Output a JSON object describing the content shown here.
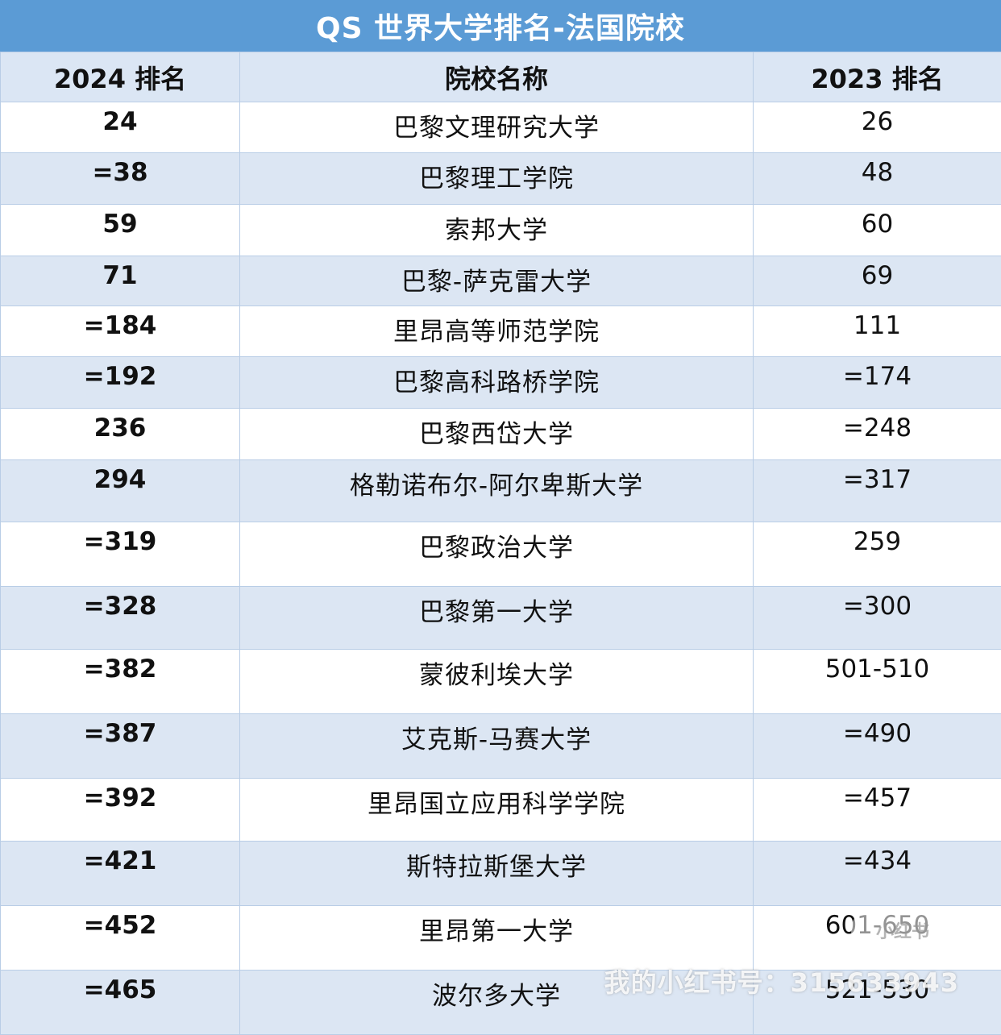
{
  "title": "QS 世界大学排名-法国院校",
  "headers": [
    "2024 排名",
    "院校名称",
    "2023 排名"
  ],
  "rows": [
    {
      "rank2024": "24",
      "school": "巴黎文理研究大学",
      "rank2023": "26"
    },
    {
      "rank2024": "=38",
      "school": "巴黎理工学院",
      "rank2023": "48"
    },
    {
      "rank2024": "59",
      "school": "索邦大学",
      "rank2023": "60"
    },
    {
      "rank2024": "71",
      "school": "巴黎-萨克雷大学",
      "rank2023": "69"
    },
    {
      "rank2024": "=184",
      "school": "里昂高等师范学院",
      "rank2023": "111"
    },
    {
      "rank2024": "=192",
      "school": "巴黎高科路桥学院",
      "rank2023": "=174"
    },
    {
      "rank2024": "236",
      "school": "巴黎西岱大学",
      "rank2023": "=248"
    },
    {
      "rank2024": "294",
      "school": "格勒诺布尔-阿尔卑斯大学",
      "rank2023": "=317"
    },
    {
      "rank2024": "=319",
      "school": "巴黎政治大学",
      "rank2023": "259"
    },
    {
      "rank2024": "=328",
      "school": "巴黎第一大学",
      "rank2023": "=300"
    },
    {
      "rank2024": "=382",
      "school": "蒙彼利埃大学",
      "rank2023": "501-510"
    },
    {
      "rank2024": "=387",
      "school": "艾克斯-马赛大学",
      "rank2023": "=490"
    },
    {
      "rank2024": "=392",
      "school": "里昂国立应用科学学院",
      "rank2023": "=457"
    },
    {
      "rank2024": "=421",
      "school": "斯特拉斯堡大学",
      "rank2023": "=434"
    },
    {
      "rank2024": "=452",
      "school": "里昂第一大学",
      "rank2023": "601-650"
    },
    {
      "rank2024": "=465",
      "school": "波尔多大学",
      "rank2023": "521-530"
    }
  ],
  "watermark": "我的小红书号：315633943",
  "badge": "小红书"
}
